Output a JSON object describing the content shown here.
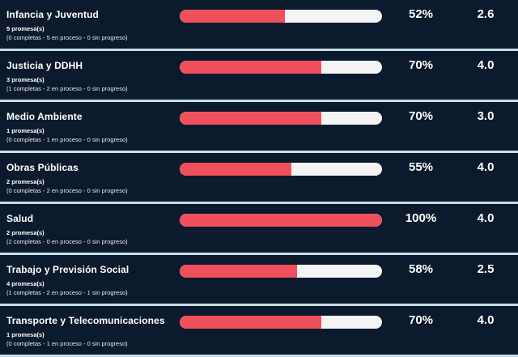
{
  "colors": {
    "background": "#0b1a2c",
    "bar_fill": "#f0505b",
    "bar_track": "#f4f4f4",
    "divider": "#c6ddea"
  },
  "rows": [
    {
      "title": "Infancia y Juventud",
      "count": "5 promesa(s)",
      "detail": "(0 completas - 5 en proceso - 0 sin progreso)",
      "progress": 52,
      "progress_label": "52%",
      "score": "2.6"
    },
    {
      "title": "Justicia y DDHH",
      "count": "3 promesa(s)",
      "detail": "(1 completas - 2 en proceso - 0 sin progreso)",
      "progress": 70,
      "progress_label": "70%",
      "score": "4.0"
    },
    {
      "title": "Medio Ambiente",
      "count": "1 promesa(s)",
      "detail": "(0 completas - 1 en proceso - 0 sin progreso)",
      "progress": 70,
      "progress_label": "70%",
      "score": "3.0"
    },
    {
      "title": "Obras Públicas",
      "count": "2 promesa(s)",
      "detail": "(0 completas - 2 en proceso - 0 sin progreso)",
      "progress": 55,
      "progress_label": "55%",
      "score": "4.0"
    },
    {
      "title": "Salud",
      "count": "2 promesa(s)",
      "detail": "(2 completas - 0 en proceso - 0 sin progreso)",
      "progress": 100,
      "progress_label": "100%",
      "score": "4.0"
    },
    {
      "title": "Trabajo y Previsión Social",
      "count": "4 promesa(s)",
      "detail": "(1 completas - 2 en proceso - 1 sin progreso)",
      "progress": 58,
      "progress_label": "58%",
      "score": "2.5"
    },
    {
      "title": "Transporte y Telecomunicaciones",
      "count": "1 promesa(s)",
      "detail": "(0 completas - 1 en proceso - 0 sin progreso)",
      "progress": 70,
      "progress_label": "70%",
      "score": "4.0"
    }
  ]
}
